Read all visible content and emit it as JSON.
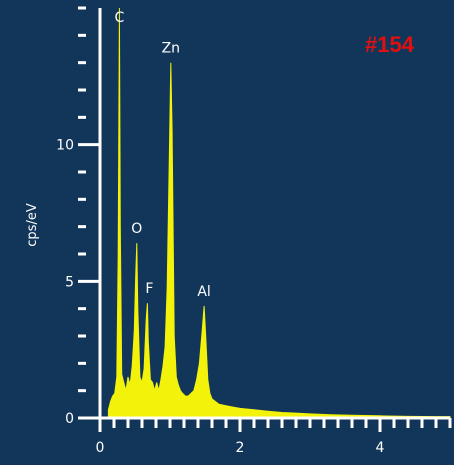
{
  "chart_data": {
    "type": "line",
    "title": "",
    "xlabel": "",
    "ylabel": "cps/eV",
    "xlim": [
      0,
      5
    ],
    "ylim": [
      0,
      15
    ],
    "x_ticks": [
      {
        "value": 0,
        "label": "0"
      },
      {
        "value": 2,
        "label": "2"
      },
      {
        "value": 4,
        "label": "4"
      }
    ],
    "y_ticks": [
      {
        "value": 0,
        "label": "0"
      },
      {
        "value": 5,
        "label": "5"
      },
      {
        "value": 10,
        "label": "10"
      }
    ],
    "grid": false,
    "legend": "none",
    "sample_tag": "#154",
    "colors": {
      "background": "#123659",
      "spectrum": "#f2f20a",
      "axis": "#ffffff",
      "sample_tag": "#e01010"
    },
    "peaks": [
      {
        "label": "C",
        "x": 0.277,
        "y": 15.2
      },
      {
        "label": "O",
        "x": 0.525,
        "y": 6.4
      },
      {
        "label": "F",
        "x": 0.677,
        "y": 4.2
      },
      {
        "label": "Zn",
        "x": 1.012,
        "y": 13.0
      },
      {
        "label": "Al",
        "x": 1.487,
        "y": 4.1
      }
    ],
    "series": [
      {
        "x": [
          0.12,
          0.15,
          0.18,
          0.21,
          0.24,
          0.26,
          0.277,
          0.29,
          0.31,
          0.34,
          0.37,
          0.4,
          0.43,
          0.46,
          0.49,
          0.51,
          0.525,
          0.54,
          0.57,
          0.6,
          0.63,
          0.66,
          0.677,
          0.69,
          0.72,
          0.75,
          0.78,
          0.81,
          0.84,
          0.87,
          0.9,
          0.93,
          0.96,
          0.99,
          1.012,
          1.03,
          1.06,
          1.09,
          1.12,
          1.15,
          1.18,
          1.22,
          1.26,
          1.3,
          1.34,
          1.38,
          1.42,
          1.46,
          1.487,
          1.51,
          1.54,
          1.57,
          1.6,
          1.65,
          1.7,
          1.8,
          1.9,
          2.0,
          2.2,
          2.4,
          2.6,
          2.8,
          3.0,
          3.3,
          3.6,
          4.0,
          4.4,
          4.8,
          5.0
        ],
        "y": [
          0.3,
          0.6,
          0.8,
          0.9,
          1.5,
          6.0,
          15.2,
          7.0,
          1.6,
          1.3,
          1.0,
          1.5,
          1.2,
          1.9,
          3.2,
          5.2,
          6.4,
          4.0,
          1.5,
          1.3,
          1.8,
          3.6,
          4.2,
          2.8,
          1.4,
          1.3,
          1.0,
          1.3,
          1.0,
          1.4,
          1.9,
          2.6,
          4.8,
          9.5,
          13.0,
          10.5,
          3.0,
          1.5,
          1.2,
          1.0,
          0.9,
          0.8,
          0.8,
          0.9,
          1.0,
          1.4,
          2.0,
          3.2,
          4.1,
          3.0,
          1.4,
          0.9,
          0.7,
          0.6,
          0.5,
          0.45,
          0.4,
          0.35,
          0.3,
          0.25,
          0.2,
          0.18,
          0.15,
          0.12,
          0.1,
          0.08,
          0.06,
          0.05,
          0.05
        ]
      }
    ]
  }
}
